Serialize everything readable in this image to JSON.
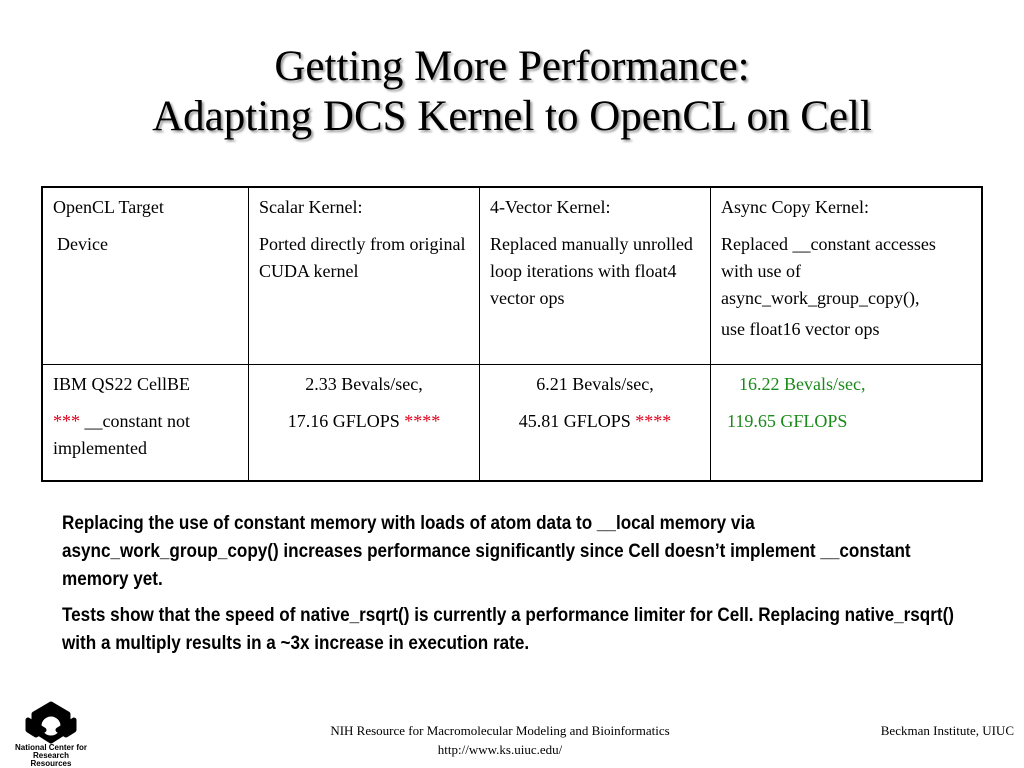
{
  "title": {
    "line1": "Getting More Performance:",
    "line2": "Adapting DCS Kernel to OpenCL on Cell"
  },
  "table": {
    "header": {
      "device_line1": "OpenCL Target",
      "device_line2": "Device",
      "scalar_title": "Scalar Kernel:",
      "scalar_desc": "Ported directly from original CUDA kernel",
      "vector_title": "4-Vector Kernel:",
      "vector_desc": "Replaced manually unrolled loop iterations with float4 vector ops",
      "async_title": "Async Copy Kernel:",
      "async_desc": "Replaced __constant accesses with use of async_work_group_copy(),",
      "async_desc2": "use float16 vector ops"
    },
    "row": {
      "device": "IBM QS22 CellBE",
      "device_note_stars": "***",
      "device_note": "__constant not implemented",
      "scalar_bevals": "2.33 Bevals/sec,",
      "scalar_gflops": "17.16 GFLOPS",
      "scalar_stars": "****",
      "vector_bevals": "6.21 Bevals/sec,",
      "vector_gflops": "45.81 GFLOPS",
      "vector_stars": "****",
      "async_bevals": "16.22 Bevals/sec,",
      "async_gflops": "119.65 GFLOPS"
    }
  },
  "notes": {
    "p1": "Replacing the use of constant memory with loads of atom data to __local memory via async_work_group_copy() increases performance significantly since Cell doesn’t implement __constant memory yet.",
    "p2": "Tests show that the speed of native_rsqrt() is currently a performance limiter for Cell. Replacing native_rsqrt() with a multiply results in a ~3x increase in execution rate."
  },
  "footer": {
    "center_line1": "NIH Resource for Macromolecular Modeling and Bioinformatics",
    "center_line2": "http://www.ks.uiuc.edu/",
    "right": "Beckman Institute, UIUC",
    "logo_text": "National Center for Research Resources"
  },
  "colors": {
    "highlight_red": "#e0001b",
    "highlight_green": "#1a8a1a"
  },
  "icons": {
    "logo": "ncrr-logo-icon"
  }
}
